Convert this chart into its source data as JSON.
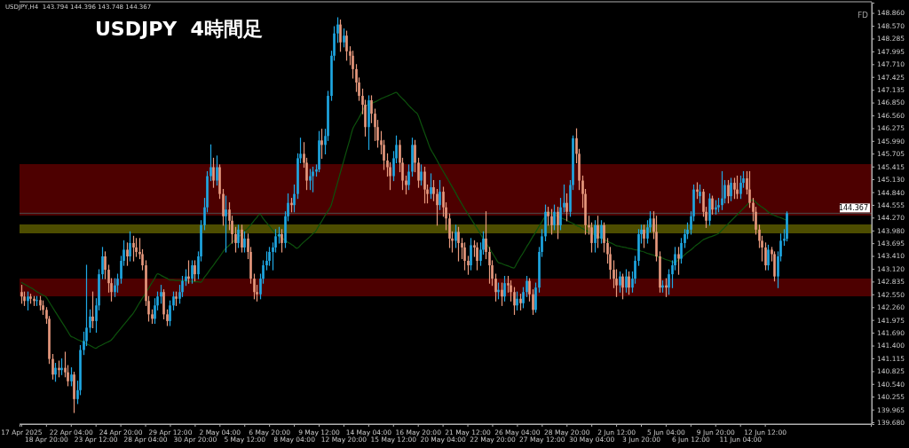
{
  "chart_data": {
    "type": "candlestick",
    "title": "USDJPY  4時間足",
    "annotations": [
      "USDJPY,H4  143.794 144.396 143.748 144.367",
      "FD"
    ],
    "categories": [
      "17 Apr 2025",
      null,
      null,
      null,
      null,
      null,
      null,
      null,
      "18 Apr 20:00",
      null,
      null,
      null,
      null,
      null,
      null,
      null,
      "22 Apr 04:00",
      null,
      null,
      null,
      null,
      null,
      null,
      null,
      "23 Apr 12:00",
      null,
      null,
      null,
      null,
      null,
      null,
      null,
      "24 Apr 20:00",
      null,
      null,
      null,
      null,
      null,
      null,
      null,
      "28 Apr 04:00",
      null,
      null,
      null,
      null,
      null,
      null,
      null,
      "29 Apr 12:00",
      null,
      null,
      null,
      null,
      null,
      null,
      null,
      "30 Apr 20:00",
      null,
      null,
      null,
      null,
      null,
      null,
      null,
      "2 May 04:00",
      null,
      null,
      null,
      null,
      null,
      null,
      null,
      "5 May 12:00",
      null,
      null,
      null,
      null,
      null,
      null,
      null,
      "6 May 20:00",
      null,
      null,
      null,
      null,
      null,
      null,
      null,
      "8 May 04:00",
      null,
      null,
      null,
      null,
      null,
      null,
      null,
      "9 May 12:00",
      null,
      null,
      null,
      null,
      null,
      null,
      null,
      "12 May 20:00",
      null,
      null,
      null,
      null,
      null,
      null,
      null,
      "14 May 04:00",
      null,
      null,
      null,
      null,
      null,
      null,
      null,
      "15 May 12:00",
      null,
      null,
      null,
      null,
      null,
      null,
      null,
      "16 May 20:00",
      null,
      null,
      null,
      null,
      null,
      null,
      null,
      "20 May 04:00",
      null,
      null,
      null,
      null,
      null,
      null,
      null,
      "21 May 12:00",
      null,
      null,
      null,
      null,
      null,
      null,
      null,
      "22 May 20:00",
      null,
      null,
      null,
      null,
      null,
      null,
      null,
      "26 May 04:00",
      null,
      null,
      null,
      null,
      null,
      null,
      null,
      "27 May 12:00",
      null,
      null,
      null,
      null,
      null,
      null,
      null,
      "28 May 20:00",
      null,
      null,
      null,
      null,
      null,
      null,
      null,
      "30 May 04:00",
      null,
      null,
      null,
      null,
      null,
      null,
      null,
      "2 Jun 12:00",
      null,
      null,
      null,
      null,
      null,
      null,
      null,
      "3 Jun 20:00",
      null,
      null,
      null,
      null,
      null,
      null,
      null,
      "5 Jun 04:00",
      null,
      null,
      null,
      null,
      null,
      null,
      null,
      "6 Jun 12:00",
      null,
      null,
      null,
      null,
      null,
      null,
      null,
      "9 Jun 20:00",
      null,
      null,
      null,
      null,
      null,
      null,
      null,
      "11 Jun 04:00",
      null,
      null,
      null,
      null,
      null,
      null,
      null,
      "12 Jun 12:00",
      null,
      null,
      null,
      null,
      null,
      null,
      null
    ],
    "ohlc": [
      [
        142.6,
        142.75,
        142.35,
        142.5
      ],
      [
        142.5,
        142.6,
        142.3,
        142.4
      ],
      [
        142.4,
        142.6,
        142.2,
        142.5
      ],
      [
        142.5,
        142.55,
        142.35,
        142.45
      ],
      [
        142.45,
        142.5,
        142.3,
        142.4
      ],
      [
        142.4,
        142.5,
        142.3,
        142.42
      ],
      [
        142.42,
        142.5,
        142.2,
        142.3
      ],
      [
        142.3,
        142.4,
        142.1,
        142.2
      ],
      [
        142.2,
        142.25,
        141.9,
        142.0
      ],
      [
        142.0,
        142.05,
        141.0,
        141.1
      ],
      [
        141.1,
        141.2,
        140.65,
        140.75
      ],
      [
        140.75,
        141.0,
        140.6,
        140.9
      ],
      [
        140.9,
        141.05,
        140.7,
        140.85
      ],
      [
        140.85,
        141.1,
        140.75,
        140.9
      ],
      [
        140.9,
        141.25,
        140.7,
        140.8
      ],
      [
        140.8,
        140.95,
        140.5,
        140.6
      ],
      [
        140.6,
        140.9,
        140.5,
        140.75
      ],
      [
        140.75,
        140.8,
        139.9,
        140.2
      ],
      [
        140.2,
        140.6,
        140.1,
        140.4
      ],
      [
        140.4,
        141.4,
        140.3,
        141.3
      ],
      [
        141.3,
        141.7,
        141.2,
        141.5
      ],
      [
        141.5,
        143.2,
        141.4,
        141.8
      ],
      [
        141.8,
        142.2,
        141.7,
        142.05
      ],
      [
        142.05,
        142.6,
        141.8,
        141.95
      ],
      [
        141.95,
        142.45,
        141.7,
        142.3
      ],
      [
        142.3,
        143.1,
        142.2,
        143.0
      ],
      [
        143.0,
        143.6,
        142.9,
        143.4
      ],
      [
        143.4,
        143.5,
        142.9,
        143.1
      ],
      [
        143.1,
        143.2,
        142.6,
        142.8
      ],
      [
        142.8,
        142.9,
        142.4,
        142.6
      ],
      [
        142.6,
        142.9,
        142.5,
        142.75
      ],
      [
        142.75,
        143.0,
        142.6,
        142.9
      ],
      [
        142.9,
        143.4,
        142.8,
        143.3
      ],
      [
        143.3,
        143.75,
        143.2,
        143.55
      ],
      [
        143.55,
        143.7,
        143.2,
        143.4
      ],
      [
        143.4,
        143.95,
        143.3,
        143.7
      ],
      [
        143.7,
        143.85,
        143.3,
        143.6
      ],
      [
        143.6,
        143.8,
        143.4,
        143.5
      ],
      [
        143.5,
        143.8,
        143.35,
        143.45
      ],
      [
        143.45,
        143.55,
        143.1,
        143.2
      ],
      [
        143.2,
        143.3,
        142.3,
        142.4
      ],
      [
        142.4,
        142.5,
        141.95,
        142.1
      ],
      [
        142.1,
        142.2,
        141.9,
        142.0
      ],
      [
        142.0,
        142.45,
        141.9,
        142.3
      ],
      [
        142.3,
        142.6,
        142.2,
        142.5
      ],
      [
        142.5,
        142.75,
        142.35,
        142.6
      ],
      [
        142.6,
        142.65,
        142.0,
        142.1
      ],
      [
        142.1,
        142.2,
        141.85,
        141.95
      ],
      [
        141.95,
        142.4,
        141.85,
        142.3
      ],
      [
        142.3,
        142.6,
        142.2,
        142.5
      ],
      [
        142.5,
        142.6,
        142.3,
        142.45
      ],
      [
        142.45,
        142.75,
        142.35,
        142.6
      ],
      [
        142.6,
        142.95,
        142.5,
        142.85
      ],
      [
        142.85,
        143.1,
        142.75,
        142.95
      ],
      [
        142.95,
        143.3,
        142.8,
        142.9
      ],
      [
        142.9,
        143.3,
        142.8,
        143.2
      ],
      [
        143.2,
        143.3,
        142.85,
        143.0
      ],
      [
        143.0,
        143.5,
        142.9,
        143.4
      ],
      [
        143.4,
        144.2,
        143.3,
        144.1
      ],
      [
        144.1,
        144.7,
        144.0,
        144.5
      ],
      [
        144.5,
        145.3,
        144.4,
        145.2
      ],
      [
        145.2,
        145.9,
        145.1,
        145.4
      ],
      [
        145.4,
        145.6,
        144.95,
        145.1
      ],
      [
        145.1,
        145.65,
        145.0,
        145.4
      ],
      [
        145.4,
        145.45,
        144.7,
        144.8
      ],
      [
        144.8,
        144.9,
        144.1,
        144.3
      ],
      [
        144.3,
        144.75,
        143.5,
        144.45
      ],
      [
        144.45,
        144.6,
        144.0,
        144.2
      ],
      [
        144.2,
        144.3,
        143.7,
        143.9
      ],
      [
        143.9,
        144.05,
        143.5,
        143.7
      ],
      [
        143.7,
        144.1,
        143.6,
        144.0
      ],
      [
        144.0,
        144.1,
        143.5,
        143.6
      ],
      [
        143.6,
        143.95,
        143.5,
        143.8
      ],
      [
        143.8,
        143.9,
        143.35,
        143.5
      ],
      [
        143.5,
        143.6,
        142.8,
        142.9
      ],
      [
        142.9,
        143.0,
        142.45,
        142.6
      ],
      [
        142.6,
        142.75,
        142.4,
        142.55
      ],
      [
        142.55,
        143.0,
        142.45,
        142.9
      ],
      [
        142.9,
        143.3,
        142.8,
        143.2
      ],
      [
        143.2,
        143.5,
        143.1,
        143.3
      ],
      [
        143.3,
        143.6,
        143.2,
        143.5
      ],
      [
        143.5,
        143.7,
        143.1,
        143.6
      ],
      [
        143.6,
        144.0,
        143.5,
        143.85
      ],
      [
        143.85,
        144.05,
        143.7,
        143.9
      ],
      [
        143.9,
        144.0,
        143.5,
        143.7
      ],
      [
        143.7,
        144.4,
        143.6,
        144.3
      ],
      [
        144.3,
        144.8,
        144.2,
        144.6
      ],
      [
        144.6,
        144.7,
        144.4,
        144.55
      ],
      [
        144.55,
        145.0,
        144.4,
        144.8
      ],
      [
        144.8,
        145.7,
        144.7,
        145.6
      ],
      [
        145.6,
        146.05,
        145.5,
        145.7
      ],
      [
        145.7,
        145.95,
        145.4,
        145.5
      ],
      [
        145.5,
        145.6,
        144.9,
        145.1
      ],
      [
        145.1,
        145.35,
        144.9,
        145.2
      ],
      [
        145.2,
        145.4,
        144.85,
        145.3
      ],
      [
        145.3,
        145.45,
        145.2,
        145.35
      ],
      [
        145.35,
        146.2,
        145.3,
        146.0
      ],
      [
        146.0,
        146.25,
        145.6,
        145.9
      ],
      [
        145.9,
        146.25,
        145.7,
        146.1
      ],
      [
        146.1,
        147.1,
        146.0,
        147.0
      ],
      [
        147.0,
        148.0,
        146.9,
        147.9
      ],
      [
        147.9,
        148.55,
        147.8,
        148.4
      ],
      [
        148.4,
        148.75,
        148.2,
        148.6
      ],
      [
        148.6,
        148.7,
        148.0,
        148.2
      ],
      [
        148.2,
        148.5,
        148.1,
        148.35
      ],
      [
        148.35,
        148.45,
        147.8,
        148.0
      ],
      [
        148.0,
        148.1,
        147.7,
        147.9
      ],
      [
        147.9,
        148.0,
        147.4,
        147.6
      ],
      [
        147.6,
        147.7,
        147.1,
        147.3
      ],
      [
        147.3,
        147.4,
        146.9,
        147.0
      ],
      [
        147.0,
        147.15,
        146.6,
        146.8
      ],
      [
        146.8,
        146.9,
        146.1,
        146.3
      ],
      [
        146.3,
        147.0,
        145.8,
        146.9
      ],
      [
        146.9,
        147.0,
        146.4,
        146.6
      ],
      [
        146.6,
        146.7,
        146.0,
        146.3
      ],
      [
        146.3,
        146.45,
        145.85,
        146.0
      ],
      [
        146.0,
        146.2,
        145.7,
        145.9
      ],
      [
        145.9,
        146.0,
        145.35,
        145.55
      ],
      [
        145.55,
        145.7,
        145.2,
        145.4
      ],
      [
        145.4,
        145.5,
        144.9,
        145.2
      ],
      [
        145.2,
        145.75,
        145.1,
        145.6
      ],
      [
        145.6,
        146.1,
        145.5,
        145.9
      ],
      [
        145.9,
        146.0,
        145.3,
        145.5
      ],
      [
        145.5,
        145.6,
        144.9,
        145.1
      ],
      [
        145.1,
        145.2,
        144.8,
        145.0
      ],
      [
        145.0,
        145.45,
        144.9,
        145.3
      ],
      [
        145.3,
        146.05,
        145.2,
        145.9
      ],
      [
        145.9,
        146.0,
        145.3,
        145.5
      ],
      [
        145.5,
        145.6,
        144.95,
        145.1
      ],
      [
        145.1,
        145.45,
        145.0,
        145.3
      ],
      [
        145.3,
        145.4,
        144.6,
        144.9
      ],
      [
        144.9,
        145.0,
        144.6,
        144.8
      ],
      [
        144.8,
        145.25,
        144.7,
        144.95
      ],
      [
        144.95,
        145.1,
        144.65,
        144.8
      ],
      [
        144.8,
        144.9,
        144.1,
        144.55
      ],
      [
        144.55,
        145.1,
        144.45,
        144.85
      ],
      [
        144.85,
        144.95,
        144.3,
        144.5
      ],
      [
        144.5,
        144.6,
        144.0,
        144.25
      ],
      [
        144.25,
        144.35,
        143.6,
        143.8
      ],
      [
        143.8,
        143.95,
        143.5,
        143.75
      ],
      [
        143.75,
        144.1,
        143.6,
        143.95
      ],
      [
        143.95,
        144.05,
        143.3,
        143.7
      ],
      [
        143.7,
        143.8,
        143.35,
        143.6
      ],
      [
        143.6,
        143.7,
        143.1,
        143.3
      ],
      [
        143.3,
        143.4,
        143.0,
        143.2
      ],
      [
        143.2,
        143.8,
        143.1,
        143.65
      ],
      [
        143.65,
        143.75,
        143.4,
        143.6
      ],
      [
        143.6,
        143.7,
        143.1,
        143.3
      ],
      [
        143.3,
        143.7,
        143.2,
        143.55
      ],
      [
        143.55,
        143.95,
        143.45,
        143.8
      ],
      [
        143.8,
        144.4,
        143.35,
        143.5
      ],
      [
        143.5,
        143.6,
        142.8,
        143.2
      ],
      [
        143.2,
        143.3,
        142.75,
        142.9
      ],
      [
        142.9,
        143.0,
        142.4,
        142.6
      ],
      [
        142.6,
        142.8,
        142.45,
        142.65
      ],
      [
        142.65,
        142.8,
        142.3,
        142.5
      ],
      [
        142.5,
        142.95,
        142.4,
        142.8
      ],
      [
        142.8,
        142.95,
        142.6,
        142.75
      ],
      [
        142.75,
        142.85,
        142.4,
        142.6
      ],
      [
        142.6,
        142.7,
        142.1,
        142.3
      ],
      [
        142.3,
        142.6,
        142.2,
        142.45
      ],
      [
        142.45,
        142.55,
        142.2,
        142.35
      ],
      [
        142.35,
        142.7,
        142.25,
        142.6
      ],
      [
        142.6,
        142.95,
        142.5,
        142.85
      ],
      [
        142.85,
        142.9,
        142.4,
        142.55
      ],
      [
        142.55,
        142.65,
        142.1,
        142.2
      ],
      [
        142.2,
        142.8,
        142.15,
        142.7
      ],
      [
        142.7,
        143.6,
        142.6,
        143.5
      ],
      [
        143.5,
        144.0,
        143.4,
        143.85
      ],
      [
        143.85,
        144.55,
        143.75,
        144.4
      ],
      [
        144.4,
        144.5,
        144.1,
        144.3
      ],
      [
        144.3,
        144.45,
        143.9,
        144.1
      ],
      [
        144.1,
        144.55,
        144.0,
        144.4
      ],
      [
        144.4,
        144.5,
        143.8,
        144.1
      ],
      [
        144.1,
        144.7,
        144.0,
        144.5
      ],
      [
        144.5,
        145.0,
        144.4,
        144.6
      ],
      [
        144.6,
        144.8,
        144.2,
        144.4
      ],
      [
        144.4,
        145.1,
        144.3,
        145.0
      ],
      [
        145.0,
        146.1,
        144.9,
        146.05
      ],
      [
        146.05,
        146.26,
        145.5,
        145.7
      ],
      [
        145.7,
        145.8,
        144.9,
        145.1
      ],
      [
        145.1,
        145.2,
        144.5,
        144.8
      ],
      [
        144.8,
        144.9,
        143.9,
        144.1
      ],
      [
        144.1,
        144.3,
        143.9,
        144.05
      ],
      [
        144.05,
        144.15,
        143.5,
        143.7
      ],
      [
        143.7,
        144.2,
        143.5,
        144.1
      ],
      [
        144.1,
        144.3,
        143.6,
        143.8
      ],
      [
        143.8,
        144.2,
        143.7,
        144.1
      ],
      [
        144.1,
        144.15,
        143.5,
        143.7
      ],
      [
        143.7,
        143.8,
        143.25,
        143.45
      ],
      [
        143.45,
        143.6,
        142.9,
        143.1
      ],
      [
        143.1,
        143.3,
        142.7,
        142.9
      ],
      [
        142.9,
        143.1,
        142.5,
        142.75
      ],
      [
        142.75,
        143.05,
        142.6,
        142.95
      ],
      [
        142.95,
        143.0,
        142.45,
        142.7
      ],
      [
        142.7,
        143.1,
        142.6,
        142.95
      ],
      [
        142.95,
        143.05,
        142.55,
        142.7
      ],
      [
        142.7,
        143.05,
        142.6,
        142.9
      ],
      [
        142.9,
        143.4,
        142.8,
        143.3
      ],
      [
        143.3,
        144.0,
        143.2,
        143.9
      ],
      [
        143.9,
        144.1,
        143.7,
        144.0
      ],
      [
        144.0,
        144.1,
        143.6,
        143.8
      ],
      [
        143.8,
        144.2,
        143.7,
        144.05
      ],
      [
        144.05,
        144.4,
        143.95,
        144.25
      ],
      [
        144.25,
        144.4,
        143.8,
        143.95
      ],
      [
        143.95,
        144.3,
        143.3,
        143.4
      ],
      [
        143.4,
        143.5,
        142.6,
        142.7
      ],
      [
        142.7,
        142.85,
        142.6,
        142.75
      ],
      [
        142.75,
        142.9,
        142.5,
        142.7
      ],
      [
        142.7,
        143.1,
        142.55,
        143.0
      ],
      [
        143.0,
        143.3,
        142.7,
        143.2
      ],
      [
        143.2,
        143.6,
        143.1,
        143.45
      ],
      [
        143.45,
        143.6,
        143.0,
        143.35
      ],
      [
        143.35,
        143.8,
        143.25,
        143.7
      ],
      [
        143.7,
        144.0,
        143.6,
        143.9
      ],
      [
        143.9,
        144.15,
        143.8,
        144.0
      ],
      [
        144.0,
        144.4,
        143.9,
        144.3
      ],
      [
        144.3,
        145.0,
        144.2,
        144.9
      ],
      [
        144.9,
        145.05,
        144.7,
        144.85
      ],
      [
        144.75,
        145.0,
        144.6,
        144.85
      ],
      [
        144.85,
        144.9,
        144.3,
        144.4
      ],
      [
        144.4,
        144.5,
        144.05,
        144.2
      ],
      [
        144.2,
        144.8,
        144.1,
        144.7
      ],
      [
        144.7,
        144.75,
        144.35,
        144.45
      ],
      [
        144.45,
        144.65,
        144.35,
        144.5
      ],
      [
        144.5,
        144.7,
        144.4,
        144.55
      ],
      [
        144.55,
        145.3,
        144.45,
        144.7
      ],
      [
        144.7,
        145.1,
        144.6,
        145.0
      ],
      [
        145.0,
        145.1,
        144.6,
        144.75
      ],
      [
        144.75,
        145.15,
        144.65,
        145.05
      ],
      [
        145.05,
        145.15,
        144.7,
        144.9
      ],
      [
        144.9,
        145.2,
        144.7,
        144.8
      ],
      [
        144.8,
        145.2,
        144.7,
        145.05
      ],
      [
        145.05,
        145.3,
        144.95,
        145.15
      ],
      [
        145.15,
        145.3,
        144.8,
        144.9
      ],
      [
        144.9,
        145.3,
        144.5,
        144.6
      ],
      [
        144.6,
        144.7,
        144.2,
        144.4
      ],
      [
        144.4,
        144.5,
        143.9,
        144.0
      ],
      [
        144.0,
        144.1,
        143.6,
        143.75
      ],
      [
        143.75,
        143.85,
        143.3,
        143.6
      ],
      [
        143.6,
        143.7,
        143.1,
        143.2
      ],
      [
        143.2,
        143.65,
        143.1,
        143.55
      ],
      [
        143.55,
        143.6,
        143.3,
        143.45
      ],
      [
        143.45,
        143.5,
        142.85,
        142.95
      ],
      [
        142.95,
        143.5,
        142.7,
        143.4
      ],
      [
        143.4,
        143.9,
        143.3,
        143.75
      ],
      [
        143.75,
        144.0,
        143.65,
        143.794
      ],
      [
        143.794,
        144.396,
        143.748,
        144.367
      ]
    ],
    "colors": [
      "#e89a7e",
      "#e89a7e",
      "#1fa8e4",
      "#e89a7e",
      "#e89a7e",
      "#1fa8e4",
      "#e89a7e",
      "#e89a7e",
      "#e89a7e",
      "#e89a7e",
      "#e89a7e",
      "#1fa8e4",
      "#e89a7e",
      "#1fa8e4",
      "#e89a7e",
      "#e89a7e",
      "#1fa8e4",
      "#e89a7e",
      "#1fa8e4",
      "#1fa8e4",
      "#1fa8e4",
      "#1fa8e4",
      "#1fa8e4",
      "#e89a7e",
      "#1fa8e4",
      "#1fa8e4",
      "#1fa8e4",
      "#e89a7e",
      "#e89a7e",
      "#e89a7e",
      "#1fa8e4",
      "#1fa8e4",
      "#1fa8e4",
      "#1fa8e4",
      "#e89a7e",
      "#1fa8e4",
      "#e89a7e",
      "#e89a7e",
      "#e89a7e",
      "#e89a7e",
      "#e89a7e",
      "#e89a7e",
      "#e89a7e",
      "#1fa8e4",
      "#1fa8e4",
      "#1fa8e4",
      "#e89a7e",
      "#e89a7e",
      "#1fa8e4",
      "#1fa8e4",
      "#e89a7e",
      "#1fa8e4",
      "#1fa8e4",
      "#1fa8e4",
      "#e89a7e",
      "#1fa8e4",
      "#e89a7e",
      "#1fa8e4",
      "#1fa8e4",
      "#1fa8e4",
      "#1fa8e4",
      "#1fa8e4",
      "#e89a7e",
      "#1fa8e4",
      "#e89a7e",
      "#e89a7e",
      "#1fa8e4",
      "#e89a7e",
      "#e89a7e",
      "#e89a7e",
      "#1fa8e4",
      "#e89a7e",
      "#1fa8e4",
      "#e89a7e",
      "#e89a7e",
      "#e89a7e",
      "#e89a7e",
      "#1fa8e4",
      "#1fa8e4",
      "#1fa8e4",
      "#1fa8e4",
      "#1fa8e4",
      "#1fa8e4",
      "#1fa8e4",
      "#e89a7e",
      "#1fa8e4",
      "#1fa8e4",
      "#e89a7e",
      "#1fa8e4",
      "#1fa8e4",
      "#1fa8e4",
      "#e89a7e",
      "#e89a7e",
      "#1fa8e4",
      "#1fa8e4",
      "#1fa8e4",
      "#1fa8e4",
      "#e89a7e",
      "#1fa8e4",
      "#1fa8e4",
      "#1fa8e4",
      "#1fa8e4",
      "#1fa8e4",
      "#e89a7e",
      "#1fa8e4",
      "#e89a7e",
      "#e89a7e",
      "#e89a7e",
      "#e89a7e",
      "#e89a7e",
      "#e89a7e",
      "#e89a7e",
      "#1fa8e4",
      "#e89a7e",
      "#e89a7e",
      "#e89a7e",
      "#e89a7e",
      "#e89a7e",
      "#e89a7e",
      "#e89a7e",
      "#1fa8e4",
      "#1fa8e4",
      "#e89a7e",
      "#e89a7e",
      "#e89a7e",
      "#1fa8e4",
      "#1fa8e4",
      "#e89a7e",
      "#e89a7e",
      "#1fa8e4",
      "#e89a7e",
      "#e89a7e",
      "#1fa8e4",
      "#e89a7e",
      "#e89a7e",
      "#1fa8e4",
      "#e89a7e",
      "#e89a7e",
      "#e89a7e",
      "#e89a7e",
      "#1fa8e4",
      "#e89a7e",
      "#e89a7e",
      "#e89a7e",
      "#e89a7e",
      "#1fa8e4",
      "#e89a7e",
      "#e89a7e",
      "#1fa8e4",
      "#1fa8e4",
      "#e89a7e",
      "#e89a7e",
      "#e89a7e",
      "#e89a7e",
      "#1fa8e4",
      "#e89a7e",
      "#1fa8e4",
      "#e89a7e",
      "#e89a7e",
      "#e89a7e",
      "#1fa8e4",
      "#e89a7e",
      "#1fa8e4",
      "#1fa8e4",
      "#e89a7e",
      "#e89a7e",
      "#1fa8e4",
      "#1fa8e4",
      "#1fa8e4",
      "#1fa8e4",
      "#e89a7e",
      "#e89a7e",
      "#1fa8e4",
      "#e89a7e",
      "#1fa8e4",
      "#1fa8e4",
      "#e89a7e",
      "#1fa8e4",
      "#1fa8e4",
      "#e89a7e",
      "#e89a7e",
      "#e89a7e",
      "#e89a7e",
      "#e89a7e",
      "#e89a7e",
      "#1fa8e4",
      "#e89a7e",
      "#1fa8e4",
      "#e89a7e",
      "#e89a7e",
      "#e89a7e",
      "#e89a7e",
      "#e89a7e",
      "#1fa8e4",
      "#e89a7e",
      "#1fa8e4",
      "#e89a7e",
      "#1fa8e4",
      "#1fa8e4",
      "#1fa8e4",
      "#1fa8e4",
      "#e89a7e",
      "#1fa8e4",
      "#1fa8e4",
      "#e89a7e",
      "#e89a7e",
      "#e89a7e",
      "#1fa8e4",
      "#e89a7e",
      "#1fa8e4",
      "#1fa8e4",
      "#1fa8e4",
      "#e89a7e",
      "#1fa8e4",
      "#1fa8e4",
      "#1fa8e4",
      "#1fa8e4",
      "#1fa8e4",
      "#e89a7e",
      "#1fa8e4",
      "#e89a7e",
      "#e89a7e",
      "#1fa8e4",
      "#e89a7e",
      "#1fa8e4",
      "#1fa8e4",
      "#1fa8e4",
      "#1fa8e4",
      "#e89a7e",
      "#1fa8e4",
      "#e89a7e",
      "#e89a7e",
      "#1fa8e4",
      "#1fa8e4",
      "#e89a7e",
      "#e89a7e",
      "#e89a7e",
      "#e89a7e",
      "#e89a7e",
      "#e89a7e",
      "#e89a7e",
      "#1fa8e4",
      "#e89a7e",
      "#e89a7e",
      "#1fa8e4",
      "#1fa8e4",
      "#1fa8e4",
      "#1fa8e4"
    ],
    "series": [
      {
        "type": "line",
        "color": "#0d520d",
        "values": [
          142.82,
          142.78,
          142.74,
          142.7,
          142.66,
          142.61,
          142.57,
          142.53,
          142.49,
          142.38,
          142.27,
          142.16,
          142.05,
          141.94,
          141.83,
          141.72,
          141.61,
          141.58,
          141.54,
          141.51,
          141.48,
          141.44,
          141.41,
          141.37,
          141.34,
          141.38,
          141.41,
          141.45,
          141.48,
          141.52,
          141.6,
          141.69,
          141.77,
          141.86,
          141.94,
          142.03,
          142.11,
          142.22,
          142.34,
          142.45,
          142.56,
          142.67,
          142.79,
          142.9,
          143.01,
          142.98,
          142.94,
          142.91,
          142.87,
          142.87,
          142.86,
          142.86,
          142.85,
          142.85,
          142.84,
          142.84,
          142.83,
          142.83,
          142.82,
          142.92,
          143.01,
          143.11,
          143.2,
          143.3,
          143.39,
          143.49,
          143.58,
          143.64,
          143.71,
          143.77,
          143.83,
          143.89,
          143.96,
          144.02,
          144.1,
          144.19,
          144.27,
          144.35,
          144.26,
          144.17,
          144.09,
          144.0,
          143.91,
          143.86,
          143.82,
          143.77,
          143.72,
          143.68,
          143.63,
          143.58,
          143.64,
          143.71,
          143.77,
          143.83,
          143.9,
          143.96,
          144.08,
          144.19,
          144.31,
          144.42,
          144.54,
          144.79,
          145.03,
          145.28,
          145.52,
          145.77,
          146.01,
          146.26,
          146.39,
          146.51,
          146.64,
          146.77,
          146.8,
          146.83,
          146.86,
          146.89,
          146.93,
          146.96,
          146.99,
          147.02,
          147.05,
          147.08,
          147.01,
          146.94,
          146.87,
          146.79,
          146.72,
          146.65,
          146.58,
          146.39,
          146.2,
          146.01,
          145.82,
          145.7,
          145.58,
          145.45,
          145.33,
          145.21,
          145.09,
          144.97,
          144.85,
          144.72,
          144.6,
          144.48,
          144.37,
          144.26,
          144.15,
          144.04,
          143.93,
          143.81,
          143.7,
          143.59,
          143.48,
          143.37,
          143.26,
          143.24,
          143.21,
          143.19,
          143.16,
          143.14,
          143.25,
          143.37,
          143.48,
          143.6,
          143.71,
          143.83,
          143.94,
          144.06,
          144.17,
          144.29,
          144.4,
          144.37,
          144.34,
          144.3,
          144.27,
          144.24,
          144.21,
          144.17,
          144.14,
          144.1,
          144.07,
          144.03,
          143.99,
          143.96,
          143.92,
          143.89,
          143.85,
          143.82,
          143.78,
          143.75,
          143.71,
          143.68,
          143.64,
          143.63,
          143.61,
          143.6,
          143.58,
          143.57,
          143.55,
          143.54,
          143.52,
          143.5,
          143.47,
          143.45,
          143.43,
          143.4,
          143.38,
          143.36,
          143.33,
          143.31,
          143.28,
          143.26,
          143.32,
          143.37,
          143.43,
          143.49,
          143.54,
          143.6,
          143.66,
          143.71,
          143.77,
          143.8,
          143.83,
          143.85,
          143.88,
          143.91,
          143.98,
          144.05,
          144.12,
          144.19,
          144.26,
          144.33,
          144.4,
          144.47,
          144.54,
          144.61,
          144.67,
          144.62,
          144.56,
          144.51,
          144.46,
          144.4,
          144.35,
          144.32,
          144.29,
          144.27,
          144.24,
          144.21
        ]
      }
    ],
    "ylim": [
      139.64,
      149.09
    ],
    "yticks": [
      {
        "value": 148.86,
        "label": "148.860"
      },
      {
        "value": 148.57,
        "label": "148.570"
      },
      {
        "value": 148.285,
        "label": "148.285"
      },
      {
        "value": 147.995,
        "label": "147.995"
      },
      {
        "value": 147.71,
        "label": "147.710"
      },
      {
        "value": 147.425,
        "label": "147.425"
      },
      {
        "value": 147.135,
        "label": "147.135"
      },
      {
        "value": 146.85,
        "label": "146.850"
      },
      {
        "value": 146.56,
        "label": "146.560"
      },
      {
        "value": 146.275,
        "label": "146.275"
      },
      {
        "value": 145.99,
        "label": "145.990"
      },
      {
        "value": 145.705,
        "label": "145.705"
      },
      {
        "value": 145.415,
        "label": "145.415"
      },
      {
        "value": 145.13,
        "label": "145.130"
      },
      {
        "value": 144.84,
        "label": "144.840"
      },
      {
        "value": 144.555,
        "label": "144.555"
      },
      {
        "value": 144.27,
        "label": "144.270"
      },
      {
        "value": 143.98,
        "label": "143.980"
      },
      {
        "value": 143.695,
        "label": "143.695"
      },
      {
        "value": 143.41,
        "label": "143.410"
      },
      {
        "value": 143.12,
        "label": "143.120"
      },
      {
        "value": 142.835,
        "label": "142.835"
      },
      {
        "value": 142.55,
        "label": "142.550"
      },
      {
        "value": 142.26,
        "label": "142.260"
      },
      {
        "value": 141.975,
        "label": "141.975"
      },
      {
        "value": 141.69,
        "label": "141.690"
      },
      {
        "value": 141.4,
        "label": "141.400"
      },
      {
        "value": 141.115,
        "label": "141.115"
      },
      {
        "value": 140.825,
        "label": "140.825"
      },
      {
        "value": 140.54,
        "label": "140.540"
      },
      {
        "value": 140.255,
        "label": "140.255"
      },
      {
        "value": 139.965,
        "label": "139.965"
      },
      {
        "value": 139.68,
        "label": "139.680"
      }
    ],
    "ref_lines": [
      {
        "axis": "y",
        "value": 144.367,
        "label": "144.367",
        "color": "#4a4a4a"
      }
    ],
    "bands": [
      {
        "axis": "y",
        "from": 144.31,
        "to": 145.47,
        "color": "#ff0000"
      },
      {
        "axis": "y",
        "from": 142.51,
        "to": 142.91,
        "color": "#ff0000"
      },
      {
        "axis": "y",
        "from": 143.91,
        "to": 144.12,
        "color": "#ffff00"
      }
    ]
  }
}
